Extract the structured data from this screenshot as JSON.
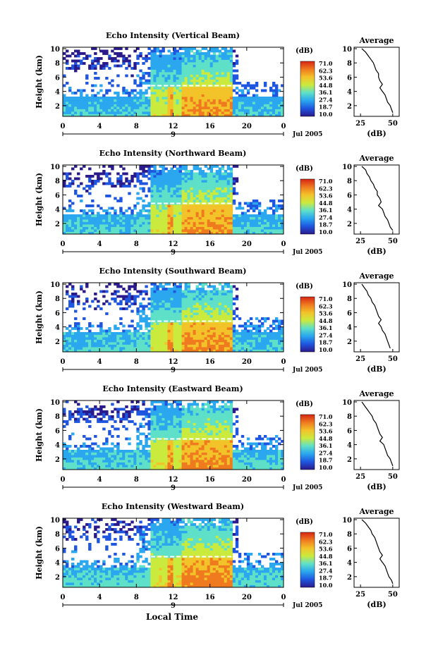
{
  "figure": {
    "x_axis_title": "Local Time",
    "date_label": "Jul 2005",
    "day_label": "9"
  },
  "colorbar": {
    "unit_label": "(dB)",
    "tick_labels": [
      "71.0",
      "62.3",
      "53.6",
      "44.8",
      "36.1",
      "27.4",
      "18.7",
      "10.0"
    ],
    "range": [
      10.0,
      71.0
    ],
    "colors": [
      "#2a1a8c",
      "#1f56e0",
      "#2aa7ef",
      "#5fe0c8",
      "#cbea3e",
      "#f3c32a",
      "#ef7a1f",
      "#d62514"
    ]
  },
  "chart_data": [
    {
      "type": "heatmap",
      "title": "Echo Intensity (Vertical Beam)",
      "xlabel": "",
      "ylabel": "Height (km)",
      "xlim": [
        0,
        24
      ],
      "ylim": [
        0.5,
        10.2
      ],
      "x_ticks": [
        "0",
        "4",
        "8",
        "12",
        "16",
        "20",
        "0"
      ],
      "y_ticks": [
        "2",
        "4",
        "6",
        "8",
        "10"
      ],
      "z_range": [
        10.0,
        71.0
      ],
      "melting_layer_km": 4.8,
      "profile": {
        "title": "Average",
        "xlabel": "(dB)",
        "x_ticks": [
          "25",
          "50"
        ],
        "y_ticks": [
          "2",
          "4",
          "6",
          "8",
          "10"
        ],
        "xlim": [
          20,
          55
        ],
        "height_km": [
          10,
          9.5,
          9,
          8.5,
          8,
          7.5,
          7,
          6.5,
          6,
          5.5,
          5,
          4.5,
          4,
          3.5,
          3,
          2.5,
          2,
          1.5,
          1
        ],
        "db": [
          26,
          29,
          31,
          33,
          35,
          36,
          37,
          39,
          39,
          40,
          42,
          40,
          42,
          44,
          45,
          46,
          48,
          49,
          50
        ]
      }
    },
    {
      "type": "heatmap",
      "title": "Echo Intensity (Northward Beam)",
      "xlabel": "",
      "ylabel": "Height (km)",
      "xlim": [
        0,
        24
      ],
      "ylim": [
        0.5,
        10.2
      ],
      "x_ticks": [
        "0",
        "4",
        "8",
        "12",
        "16",
        "20",
        "0"
      ],
      "y_ticks": [
        "2",
        "4",
        "6",
        "8",
        "10"
      ],
      "z_range": [
        10.0,
        71.0
      ],
      "melting_layer_km": 4.8,
      "profile": {
        "title": "Average",
        "xlabel": "(dB)",
        "x_ticks": [
          "25",
          "50"
        ],
        "y_ticks": [
          "2",
          "4",
          "6",
          "8",
          "10"
        ],
        "xlim": [
          20,
          55
        ],
        "height_km": [
          10,
          9.5,
          9,
          8.5,
          8,
          7.5,
          7,
          6.5,
          6,
          5.5,
          5,
          4.5,
          4,
          3.5,
          3,
          2.5,
          2,
          1.5,
          1
        ],
        "db": [
          26,
          29,
          30,
          32,
          33,
          35,
          36,
          38,
          38,
          40,
          41,
          39,
          42,
          43,
          44,
          46,
          47,
          48,
          50
        ]
      }
    },
    {
      "type": "heatmap",
      "title": "Echo Intensity (Southward Beam)",
      "xlabel": "",
      "ylabel": "Height (km)",
      "xlim": [
        0,
        24
      ],
      "ylim": [
        0.5,
        10.2
      ],
      "x_ticks": [
        "0",
        "4",
        "8",
        "12",
        "16",
        "20",
        "0"
      ],
      "y_ticks": [
        "2",
        "4",
        "6",
        "8",
        "10"
      ],
      "z_range": [
        10.0,
        71.0
      ],
      "melting_layer_km": 4.8,
      "profile": {
        "title": "Average",
        "xlabel": "(dB)",
        "x_ticks": [
          "25",
          "50"
        ],
        "y_ticks": [
          "2",
          "4",
          "6",
          "8",
          "10"
        ],
        "xlim": [
          20,
          55
        ],
        "height_km": [
          10,
          9.5,
          9,
          8.5,
          8,
          7.5,
          7,
          6.5,
          6,
          5.5,
          5,
          4.5,
          4,
          3.5,
          3,
          2.5,
          2,
          1.5,
          1
        ],
        "db": [
          26,
          28,
          30,
          31,
          33,
          34,
          36,
          37,
          38,
          39,
          41,
          39,
          41,
          42,
          44,
          45,
          46,
          47,
          48
        ]
      }
    },
    {
      "type": "heatmap",
      "title": "Echo Intensity (Eastward Beam)",
      "xlabel": "",
      "ylabel": "Height (km)",
      "xlim": [
        0,
        24
      ],
      "ylim": [
        0.5,
        10.2
      ],
      "x_ticks": [
        "0",
        "4",
        "8",
        "12",
        "16",
        "20",
        "0"
      ],
      "y_ticks": [
        "2",
        "4",
        "6",
        "8",
        "10"
      ],
      "z_range": [
        10.0,
        71.0
      ],
      "melting_layer_km": 4.8,
      "profile": {
        "title": "Average",
        "xlabel": "(dB)",
        "x_ticks": [
          "25",
          "50"
        ],
        "y_ticks": [
          "2",
          "4",
          "6",
          "8",
          "10"
        ],
        "xlim": [
          20,
          55
        ],
        "height_km": [
          10,
          9.5,
          9,
          8.5,
          8,
          7.5,
          7,
          6.5,
          6,
          5.5,
          5,
          4.5,
          4,
          3.5,
          3,
          2.5,
          2,
          1.5,
          1
        ],
        "db": [
          26,
          28,
          30,
          32,
          34,
          35,
          37,
          38,
          39,
          40,
          42,
          40,
          43,
          44,
          45,
          46,
          48,
          49,
          50
        ]
      }
    },
    {
      "type": "heatmap",
      "title": "Echo Intensity (Westward Beam)",
      "xlabel": "Local Time",
      "ylabel": "Height (km)",
      "xlim": [
        0,
        24
      ],
      "ylim": [
        0.5,
        10.2
      ],
      "x_ticks": [
        "0",
        "4",
        "8",
        "12",
        "16",
        "20",
        "0"
      ],
      "y_ticks": [
        "2",
        "4",
        "6",
        "8",
        "10"
      ],
      "z_range": [
        10.0,
        71.0
      ],
      "melting_layer_km": 4.8,
      "profile": {
        "title": "Average",
        "xlabel": "(dB)",
        "x_ticks": [
          "25",
          "50"
        ],
        "y_ticks": [
          "2",
          "4",
          "6",
          "8",
          "10"
        ],
        "xlim": [
          20,
          55
        ],
        "height_km": [
          10,
          9.5,
          9,
          8.5,
          8,
          7.5,
          7,
          6.5,
          6,
          5.5,
          5,
          4.5,
          4,
          3.5,
          3,
          2.5,
          2,
          1.5,
          1
        ],
        "db": [
          26,
          29,
          31,
          33,
          34,
          36,
          37,
          38,
          39,
          40,
          42,
          40,
          42,
          44,
          45,
          46,
          47,
          49,
          50
        ]
      }
    }
  ]
}
